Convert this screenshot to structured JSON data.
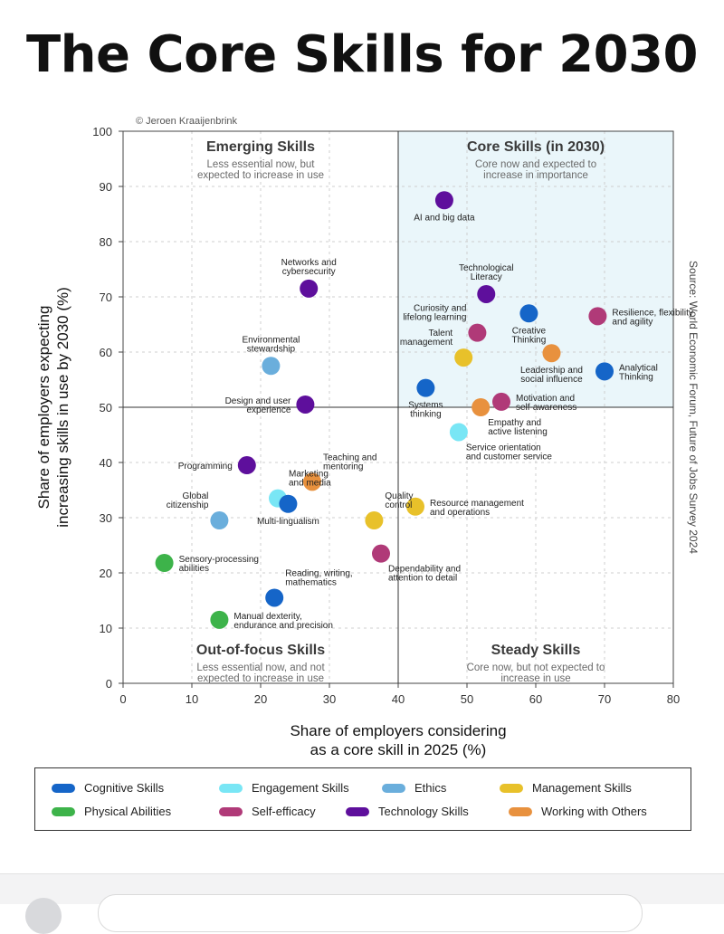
{
  "title": "The Core Skills for 2030",
  "chart_data": {
    "type": "scatter",
    "title": "The Core Skills for 2030",
    "xlabel_lines": [
      "Share of employers considering",
      "as a core skill in 2025 (%)"
    ],
    "ylabel_lines": [
      "Share of employers expecting",
      "increasing skills in use by 2030 (%)"
    ],
    "xlim": [
      0,
      80
    ],
    "ylim": [
      0,
      100
    ],
    "xticks": [
      0,
      10,
      20,
      30,
      40,
      50,
      60,
      70,
      80
    ],
    "yticks": [
      0,
      10,
      20,
      30,
      40,
      50,
      60,
      70,
      80,
      90,
      100
    ],
    "divider_x": 40,
    "divider_y": 50,
    "credit": "© Jeroen Kraaijenbrink",
    "source": "Source: World Economic Forum, Future of Jobs Survey 2024",
    "quadrants": [
      {
        "id": "emerging",
        "title": "Emerging Skills",
        "sub": [
          "Less essential now, but",
          "expected to increase in use"
        ]
      },
      {
        "id": "core",
        "title": "Core Skills (in 2030)",
        "sub": [
          "Core now and expected to",
          "increase in importance"
        ]
      },
      {
        "id": "out",
        "title": "Out-of-focus Skills",
        "sub": [
          "Less essential now, and not",
          "expected to increase in use"
        ]
      },
      {
        "id": "steady",
        "title": "Steady Skills",
        "sub": [
          "Core now, but not expected to",
          "increase in use"
        ]
      }
    ],
    "categories": [
      {
        "name": "Cognitive Skills",
        "color": "#1565c8"
      },
      {
        "name": "Engagement Skills",
        "color": "#79e6f5"
      },
      {
        "name": "Ethics",
        "color": "#6aaedc"
      },
      {
        "name": "Management Skills",
        "color": "#e8c12a"
      },
      {
        "name": "Physical Abilities",
        "color": "#3db34a"
      },
      {
        "name": "Self-efficacy",
        "color": "#b03a78"
      },
      {
        "name": "Technology Skills",
        "color": "#5e0f9c"
      },
      {
        "name": "Working with Others",
        "color": "#e8913e"
      }
    ],
    "points": [
      {
        "label": [
          "AI and big data"
        ],
        "x": 46.7,
        "y": 87.5,
        "cat": "Technology Skills",
        "pos": "below"
      },
      {
        "label": [
          "Networks and",
          "cybersecurity"
        ],
        "x": 27.0,
        "y": 71.5,
        "cat": "Technology Skills",
        "pos": "above"
      },
      {
        "label": [
          "Technological",
          "Literacy"
        ],
        "x": 52.8,
        "y": 70.5,
        "cat": "Technology Skills",
        "pos": "above"
      },
      {
        "label": [
          "Creative",
          "Thinking"
        ],
        "x": 59.0,
        "y": 67.0,
        "cat": "Cognitive Skills",
        "pos": "below"
      },
      {
        "label": [
          "Resilience, flexibility",
          "and agility"
        ],
        "x": 69.0,
        "y": 66.5,
        "cat": "Self-efficacy",
        "pos": "right"
      },
      {
        "label": [
          "Curiosity and",
          "lifelong learning"
        ],
        "x": 51.5,
        "y": 63.5,
        "cat": "Self-efficacy",
        "pos": "upleft"
      },
      {
        "label": [
          "Leadership and",
          "social influence"
        ],
        "x": 62.3,
        "y": 59.8,
        "cat": "Working with Others",
        "pos": "below"
      },
      {
        "label": [
          "Talent",
          "management"
        ],
        "x": 49.5,
        "y": 59.0,
        "cat": "Management Skills",
        "pos": "upleft"
      },
      {
        "label": [
          "Environmental",
          "stewardship"
        ],
        "x": 21.5,
        "y": 57.5,
        "cat": "Ethics",
        "pos": "above"
      },
      {
        "label": [
          "Analytical",
          "Thinking"
        ],
        "x": 70.0,
        "y": 56.5,
        "cat": "Cognitive Skills",
        "pos": "right"
      },
      {
        "label": [
          "Systems",
          "thinking"
        ],
        "x": 44.0,
        "y": 53.5,
        "cat": "Cognitive Skills",
        "pos": "below"
      },
      {
        "label": [
          "Motivation and",
          "self-awareness"
        ],
        "x": 55.0,
        "y": 51.0,
        "cat": "Self-efficacy",
        "pos": "right"
      },
      {
        "label": [
          "Empathy and",
          "active listening"
        ],
        "x": 52.0,
        "y": 50.0,
        "cat": "Working with Others",
        "pos": "belowright"
      },
      {
        "label": [
          "Design and user",
          "experience"
        ],
        "x": 26.5,
        "y": 50.5,
        "cat": "Technology Skills",
        "pos": "left"
      },
      {
        "label": [
          "Service orientation",
          "and customer service"
        ],
        "x": 48.8,
        "y": 45.5,
        "cat": "Engagement Skills",
        "pos": "belowright"
      },
      {
        "label": [
          "Programming"
        ],
        "x": 18.0,
        "y": 39.5,
        "cat": "Technology Skills",
        "pos": "left"
      },
      {
        "label": [
          "Teaching and",
          "mentoring"
        ],
        "x": 27.5,
        "y": 36.5,
        "cat": "Working with Others",
        "pos": "upright"
      },
      {
        "label": [
          "Marketing",
          "and media"
        ],
        "x": 22.5,
        "y": 33.5,
        "cat": "Engagement Skills",
        "pos": "upright"
      },
      {
        "label": [
          "Multi-lingualism"
        ],
        "x": 24.0,
        "y": 32.5,
        "cat": "Cognitive Skills",
        "pos": "below"
      },
      {
        "label": [
          "Resource management",
          "and operations"
        ],
        "x": 42.5,
        "y": 32.0,
        "cat": "Management Skills",
        "pos": "right"
      },
      {
        "label": [
          "Global",
          "citizenship"
        ],
        "x": 14.0,
        "y": 29.5,
        "cat": "Ethics",
        "pos": "upleft"
      },
      {
        "label": [
          "Quality",
          "control"
        ],
        "x": 36.5,
        "y": 29.5,
        "cat": "Management Skills",
        "pos": "upright"
      },
      {
        "label": [
          "Dependability and",
          "attention to detail"
        ],
        "x": 37.5,
        "y": 23.5,
        "cat": "Self-efficacy",
        "pos": "belowright"
      },
      {
        "label": [
          "Sensory-processing",
          "abilities"
        ],
        "x": 6.0,
        "y": 21.8,
        "cat": "Physical Abilities",
        "pos": "right"
      },
      {
        "label": [
          "Reading, writing,",
          "mathematics"
        ],
        "x": 22.0,
        "y": 15.5,
        "cat": "Cognitive Skills",
        "pos": "upright"
      },
      {
        "label": [
          "Manual dexterity,",
          "endurance and precision"
        ],
        "x": 14.0,
        "y": 11.5,
        "cat": "Physical Abilities",
        "pos": "right"
      }
    ]
  }
}
